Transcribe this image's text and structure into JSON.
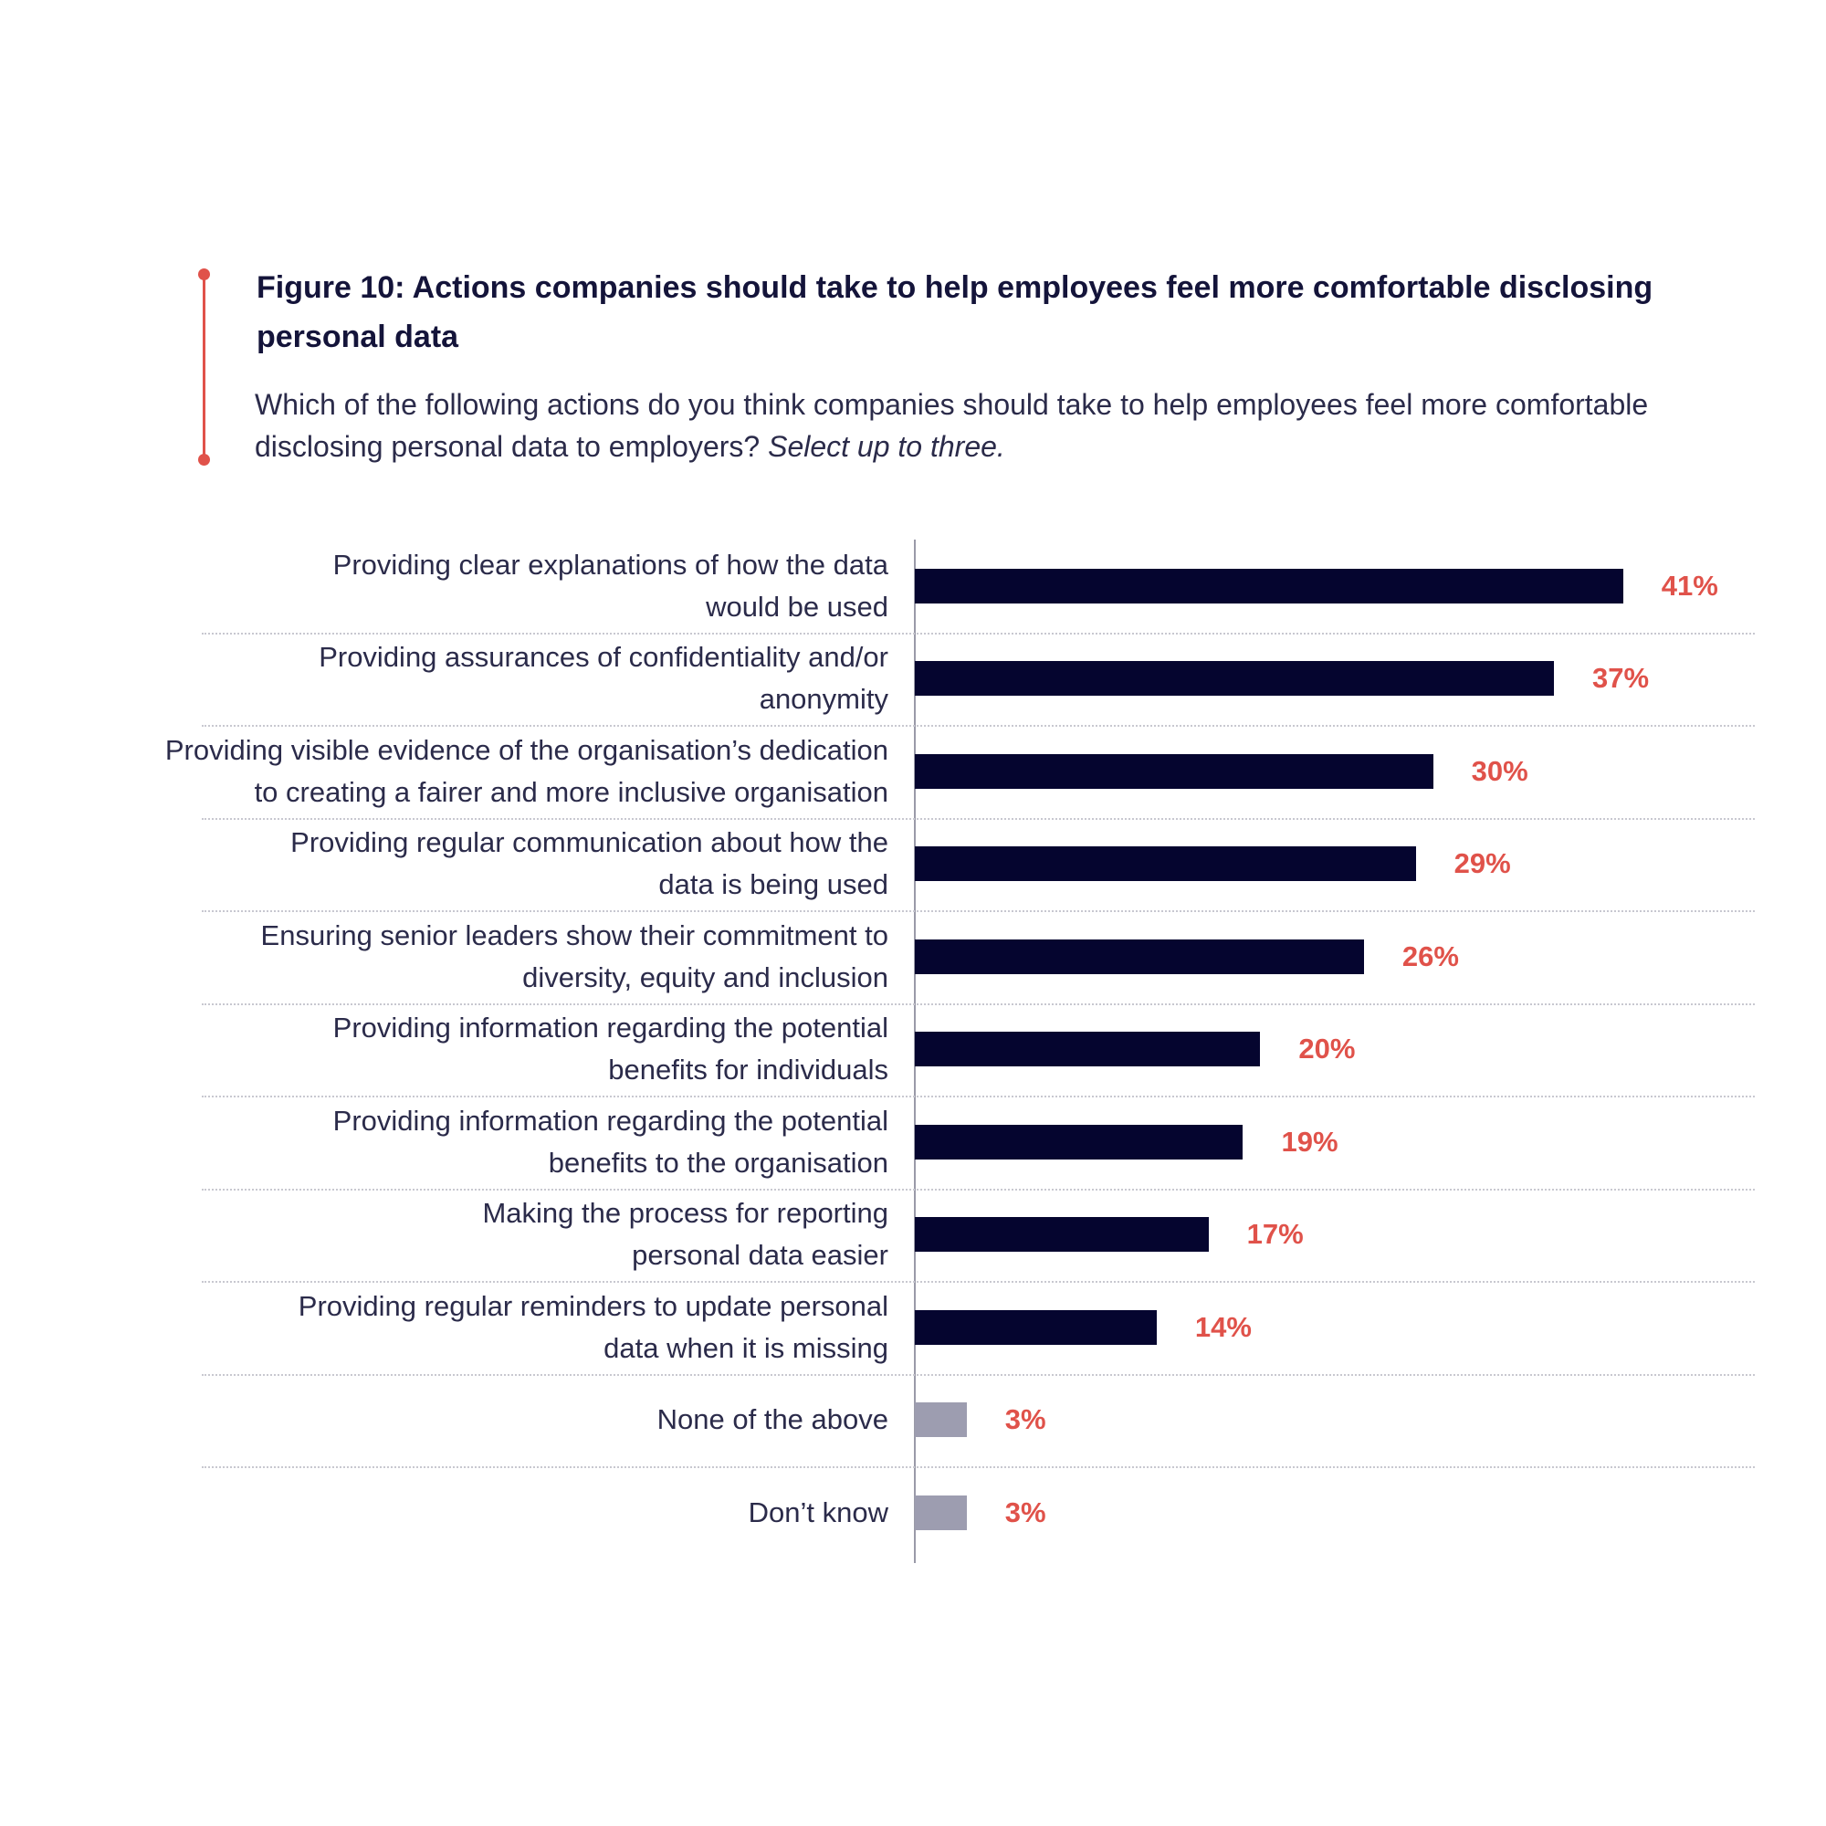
{
  "chart_data": {
    "type": "bar",
    "orientation": "horizontal",
    "title": "Figure 10: Actions companies should take to help employees feel more comfortable disclosing personal data",
    "subtitle": "Which of the following actions do you think companies should take to help employees feel more comfortable disclosing personal data to employers?",
    "subtitle_emphasis": "Select up to three.",
    "categories": [
      "Providing clear explanations of how the data\nwould be used",
      "Providing assurances of confidentiality and/or\nanonymity",
      "Providing visible evidence of the organisation’s dedication\nto creating a fairer and more inclusive organisation",
      "Providing regular communication about how the\ndata is being used",
      "Ensuring senior leaders show their commitment to\ndiversity, equity and inclusion",
      "Providing information regarding the potential\nbenefits for individuals",
      "Providing information regarding the potential\nbenefits to the organisation",
      "Making the process for reporting\npersonal data easier",
      "Providing regular reminders to update personal\ndata when it is missing",
      "None of the above",
      "Don’t know"
    ],
    "values": [
      41,
      37,
      30,
      29,
      26,
      20,
      19,
      17,
      14,
      3,
      3
    ],
    "value_labels": [
      "41%",
      "37%",
      "30%",
      "29%",
      "26%",
      "20%",
      "19%",
      "17%",
      "14%",
      "3%",
      "3%"
    ],
    "colors": [
      "#05052f",
      "#05052f",
      "#05052f",
      "#05052f",
      "#05052f",
      "#05052f",
      "#05052f",
      "#05052f",
      "#05052f",
      "#9d9db0",
      "#9d9db0"
    ],
    "xlim": [
      0,
      50
    ]
  }
}
